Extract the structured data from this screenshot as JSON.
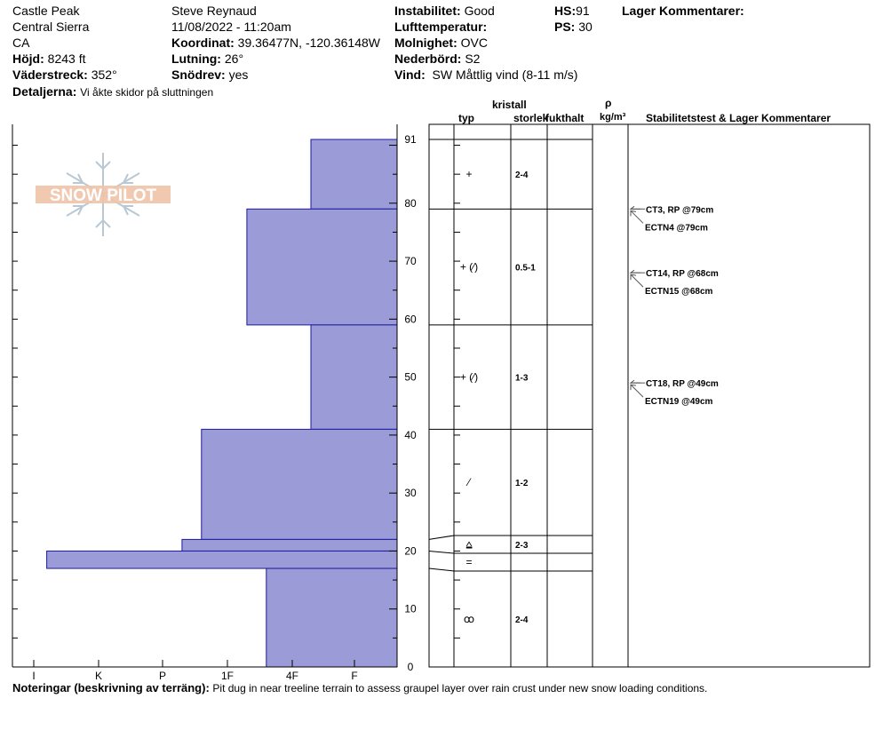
{
  "header": {
    "location": "Castle Peak",
    "range": "Central Sierra",
    "state": "CA",
    "observer": "Steve Reynaud",
    "datetime": "11/08/2022 - 11:20am",
    "hojd_label": "Höjd:",
    "hojd_value": "8243 ft",
    "vaderstreck_label": "Väderstreck:",
    "vaderstreck_value": "352°",
    "koordinat_label": "Koordinat:",
    "koordinat_value": "39.36477N, -120.36148W",
    "lutning_label": "Lutning:",
    "lutning_value": "26°",
    "snodrev_label": "Snödrev:",
    "snodrev_value": "yes",
    "instabilitet_label": "Instabilitet:",
    "instabilitet_value": "Good",
    "lufttemp_label": "Lufttemperatur:",
    "molnighet_label": "Molnighet:",
    "molnighet_value": "OVC",
    "nederbord_label": "Nederbörd:",
    "nederbord_value": "S2",
    "vind_label": "Vind:",
    "vind_value": "SW  Måttlig vind (8-11 m/s)",
    "hs_label": "HS:",
    "hs_value": "91",
    "ps_label": "PS:",
    "ps_value": "30",
    "lager_label": "Lager Kommentarer:",
    "detaljer_label": "Detaljerna:",
    "detaljer_value": "Vi åkte skidor på sluttningen"
  },
  "columns": {
    "kristall": "kristall",
    "typ": "typ",
    "storlek": "storlek",
    "fukthalt": "fukthalt",
    "rho": "ρ",
    "rho_unit": "kg/m³",
    "stab": "Stabilitetstest & Lager Kommentarer"
  },
  "logo_text": "SNOW PILOT",
  "notes": {
    "label": "Noteringar (beskrivning av terräng):",
    "text": "Pit dug in near treeline terrain to assess graupel layer over rain crust under new snow loading conditions."
  },
  "chart_data": {
    "type": "bar",
    "orientation": "horizontal",
    "y_axis": {
      "range": [
        0,
        91
      ],
      "ticks": [
        0,
        10,
        20,
        30,
        40,
        50,
        60,
        70,
        80,
        91
      ]
    },
    "hardness_scale": [
      "I",
      "K",
      "P",
      "1F",
      "4F",
      "F"
    ],
    "hardness_profile": [
      {
        "bottom": 79,
        "top": 91,
        "hardness_index": 0.7
      },
      {
        "bottom": 59,
        "top": 79,
        "hardness_index": 1.7
      },
      {
        "bottom": 41,
        "top": 59,
        "hardness_index": 0.7
      },
      {
        "bottom": 22,
        "top": 41,
        "hardness_index": 2.4
      },
      {
        "bottom": 20,
        "top": 22,
        "hardness_index": 2.7
      },
      {
        "bottom": 17,
        "top": 20,
        "hardness_index": 4.8
      },
      {
        "bottom": 0,
        "top": 17,
        "hardness_index": 1.4
      }
    ],
    "layers": [
      {
        "bottom": 79,
        "top": 91,
        "crystal": "+",
        "size": "2-4"
      },
      {
        "bottom": 59,
        "top": 79,
        "crystal": "+ (⁄)",
        "size": "0.5-1"
      },
      {
        "bottom": 41,
        "top": 59,
        "crystal": "+ (⁄)",
        "size": "1-3"
      },
      {
        "bottom": 22,
        "top": 41,
        "crystal": "⁄",
        "size": "1-2"
      },
      {
        "bottom": 20,
        "top": 22,
        "crystal": "⩠",
        "size": "2-3"
      },
      {
        "bottom": 17,
        "top": 20,
        "crystal": "=",
        "size": ""
      },
      {
        "bottom": 0,
        "top": 17,
        "crystal": "ꝏ",
        "size": "2-4"
      }
    ],
    "tests": [
      {
        "label": "CT3, RP @79cm",
        "depth": 79
      },
      {
        "label": "ECTN4 @79cm",
        "depth": 79
      },
      {
        "label": "CT14, RP @68cm",
        "depth": 68
      },
      {
        "label": "ECTN15 @68cm",
        "depth": 68
      },
      {
        "label": "CT18, RP @49cm",
        "depth": 49
      },
      {
        "label": "ECTN19 @49cm",
        "depth": 49
      }
    ],
    "colors": {
      "bar_fill": "#9b9bd7",
      "bar_stroke": "#1a1aa0"
    }
  }
}
